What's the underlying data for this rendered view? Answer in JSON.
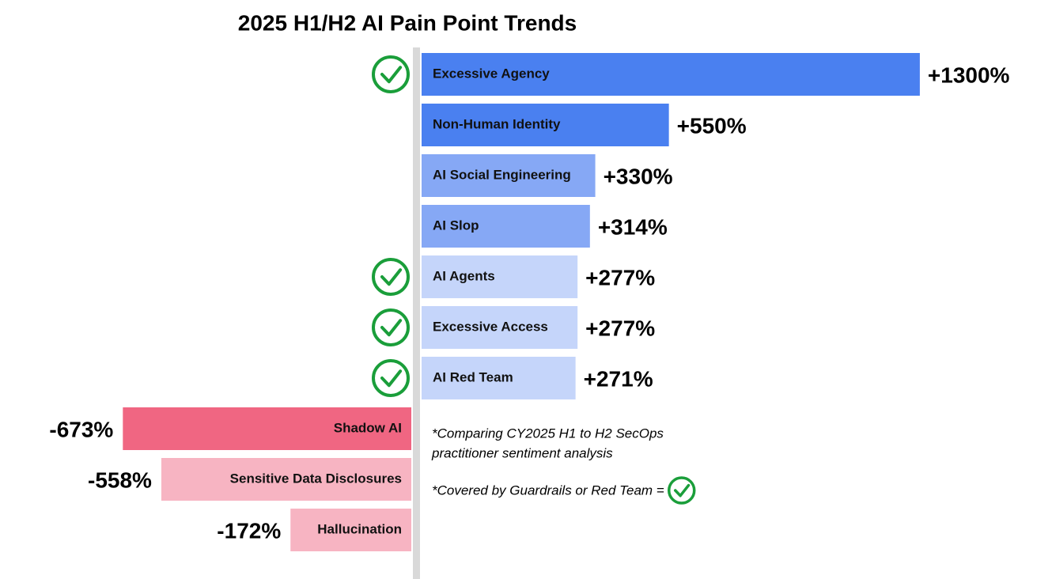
{
  "chart_data": {
    "type": "diverging-bar",
    "title": "2025 H1/H2 AI Pain Point Trends",
    "categories": [
      "Excessive Agency",
      "Non-Human Identity",
      "AI Social Engineering",
      "AI Slop",
      "AI Agents",
      "Excessive Access",
      "AI Red Team",
      "Shadow AI",
      "Sensitive Data Disclosures",
      "Hallucination"
    ],
    "values": [
      1300,
      550,
      330,
      314,
      277,
      277,
      271,
      -673,
      -558,
      -172
    ],
    "value_labels": [
      "+1300%",
      "+550%",
      "+330%",
      "+314%",
      "+277%",
      "+277%",
      "+271%",
      "-673%",
      "-558%",
      "-172%"
    ],
    "colors": [
      "#4a80f0",
      "#4a80f0",
      "#86a8f5",
      "#86a8f5",
      "#c5d5fa",
      "#c5d5fa",
      "#c5d5fa",
      "#f06682",
      "#f7b4c2",
      "#f7b4c2"
    ],
    "covered": [
      true,
      false,
      false,
      false,
      true,
      true,
      true,
      false,
      false,
      false
    ],
    "notes": [
      "*Comparing CY2025 H1 to H2  SecOps",
      "practitioner sentiment analysis",
      "*Covered by Guardrails or Red Team ="
    ]
  }
}
